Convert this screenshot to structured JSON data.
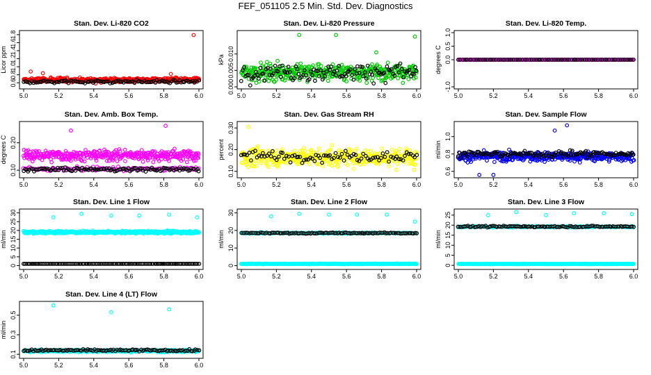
{
  "figure": {
    "title": "FEF_051105  2.5 Min. Std. Dev. Diagnostics"
  },
  "colors": {
    "black": "#000000",
    "red": "#ff0000",
    "green": "#00cc00",
    "magenta": "#ff00ff",
    "yellow": "#ffff00",
    "blue": "#0000ff",
    "cyan": "#00ffff"
  },
  "chart_data": [
    {
      "type": "scatter",
      "title": "Stan. Dev. Li-820 CO2",
      "ylabel": "Licor ppm",
      "xlim": [
        5.0,
        6.0
      ],
      "ylim": [
        0.5,
        1.85
      ],
      "xticks": [
        "5.0",
        "5.2",
        "5.4",
        "5.6",
        "5.8",
        "6.0"
      ],
      "yticks": [
        "0.6",
        "0.8",
        "1.0",
        "1.2",
        "1.4",
        "1.6",
        "1.8"
      ],
      "series": [
        {
          "color": "red",
          "n": 400,
          "base": 0.67,
          "spread": 0.1,
          "outliers": [
            [
              5.04,
              0.88
            ],
            [
              5.11,
              0.84
            ],
            [
              5.97,
              1.79
            ],
            [
              5.84,
              0.82
            ]
          ]
        },
        {
          "color": "black",
          "n": 110,
          "base": 0.63,
          "spread": 0.07,
          "outliers": []
        }
      ]
    },
    {
      "type": "scatter",
      "title": "Stan. Dev. Li-820 Pressure",
      "ylabel": "kPa",
      "xlim": [
        5.0,
        6.0
      ],
      "ylim": [
        0.0,
        0.0165
      ],
      "xticks": [
        "5.0",
        "5.2",
        "5.4",
        "5.6",
        "5.8",
        "6.0"
      ],
      "yticks": [
        "0.000",
        "0.005",
        "0.010"
      ],
      "series": [
        {
          "color": "green",
          "n": 420,
          "base": 0.0045,
          "spread": 0.0045,
          "outliers": [
            [
              5.33,
              0.0158
            ],
            [
              5.54,
              0.0158
            ],
            [
              5.99,
              0.0153
            ],
            [
              5.77,
              0.0105
            ]
          ]
        },
        {
          "color": "black",
          "n": 120,
          "base": 0.0045,
          "spread": 0.0045,
          "outliers": []
        }
      ]
    },
    {
      "type": "scatter",
      "title": "Stan. Dev. Li-820 Temp.",
      "ylabel": "degrees C",
      "xlim": [
        5.0,
        6.0
      ],
      "ylim": [
        -1.0,
        1.0
      ],
      "xticks": [
        "5.0",
        "5.2",
        "5.4",
        "5.6",
        "5.8",
        "6.0"
      ],
      "yticks": [
        "-1.0",
        "0.0",
        "0.5",
        "1.0"
      ],
      "series": [
        {
          "color": "magenta",
          "n": 200,
          "base": 0.0,
          "spread": 0.0,
          "outliers": []
        },
        {
          "color": "black",
          "n": 80,
          "base": 0.0,
          "spread": 0.0,
          "outliers": []
        }
      ]
    },
    {
      "type": "scatter",
      "title": "Stan. Dev. Amb. Box Temp.",
      "ylabel": "degrees C",
      "xlim": [
        5.0,
        6.0
      ],
      "ylim": [
        0.08,
        0.27
      ],
      "xticks": [
        "5.0",
        "5.2",
        "5.4",
        "5.6",
        "5.8",
        "6.0"
      ],
      "yticks": [
        "0.10",
        "0.20"
      ],
      "series": [
        {
          "color": "magenta",
          "n": 380,
          "base": 0.155,
          "spread": 0.035,
          "outliers": [
            [
              5.81,
              0.262
            ],
            [
              5.27,
              0.245
            ]
          ]
        },
        {
          "color": "magenta",
          "n": 120,
          "base": 0.105,
          "spread": 0.012,
          "outliers": []
        },
        {
          "color": "black",
          "n": 120,
          "base": 0.103,
          "spread": 0.012,
          "outliers": []
        }
      ]
    },
    {
      "type": "scatter",
      "title": "Stan. Dev. Gas Stream RH",
      "ylabel": "percent",
      "xlim": [
        5.0,
        6.0
      ],
      "ylim": [
        0.08,
        0.32
      ],
      "xticks": [
        "5.0",
        "5.2",
        "5.4",
        "5.6",
        "5.8",
        "6.0"
      ],
      "yticks": [
        "0.10",
        "0.20",
        "0.30"
      ],
      "series": [
        {
          "color": "yellow",
          "n": 450,
          "base": 0.165,
          "spread": 0.07,
          "outliers": [
            [
              5.04,
              0.305
            ]
          ]
        },
        {
          "color": "black",
          "n": 90,
          "base": 0.17,
          "spread": 0.045,
          "outliers": []
        }
      ]
    },
    {
      "type": "scatter",
      "title": "Stan. Dev. Sample Flow",
      "ylabel": "ml/min",
      "xlim": [
        5.0,
        6.0
      ],
      "ylim": [
        0.55,
        1.15
      ],
      "xticks": [
        "5.0",
        "5.2",
        "5.4",
        "5.6",
        "5.8",
        "6.0"
      ],
      "yticks": [
        "0.6",
        "0.8",
        "1.0"
      ],
      "series": [
        {
          "color": "blue",
          "n": 460,
          "base": 0.77,
          "spread": 0.09,
          "outliers": [
            [
              5.12,
              0.56
            ],
            [
              5.2,
              0.56
            ],
            [
              5.62,
              1.13
            ],
            [
              5.55,
              1.07
            ]
          ]
        },
        {
          "color": "black",
          "n": 130,
          "base": 0.8,
          "spread": 0.06,
          "outliers": []
        }
      ]
    },
    {
      "type": "scatter",
      "title": "Stan. Dev. Line 1 Flow",
      "ylabel": "ml/min",
      "xlim": [
        5.0,
        6.0
      ],
      "ylim": [
        -1,
        31
      ],
      "xticks": [
        "5.0",
        "5.2",
        "5.4",
        "5.6",
        "5.8",
        "6.0"
      ],
      "yticks": [
        "0",
        "5",
        "10",
        "15",
        "20",
        "25",
        "30"
      ],
      "series": [
        {
          "color": "cyan",
          "n": 480,
          "base": 19,
          "spread": 1.2,
          "outliers": [
            [
              5.17,
              27.5
            ],
            [
              5.33,
              29.5
            ],
            [
              5.5,
              28.5
            ],
            [
              5.66,
              28.5
            ],
            [
              5.83,
              29
            ],
            [
              5.99,
              27.5
            ]
          ]
        },
        {
          "color": "black",
          "n": 120,
          "base": 1,
          "spread": 0.0,
          "outliers": []
        }
      ]
    },
    {
      "type": "scatter",
      "title": "Stan. Dev. Line 2 Flow",
      "ylabel": "ml/min",
      "xlim": [
        5.0,
        6.0
      ],
      "ylim": [
        -1,
        31
      ],
      "xticks": [
        "5.0",
        "5.2",
        "5.4",
        "5.6",
        "5.8",
        "6.0"
      ],
      "yticks": [
        "0",
        "10",
        "20",
        "30"
      ],
      "series": [
        {
          "color": "cyan",
          "n": 420,
          "base": 1,
          "spread": 0.3,
          "outliers": []
        },
        {
          "color": "cyan",
          "n": 160,
          "base": 18.5,
          "spread": 0.6,
          "outliers": [
            [
              5.17,
              28
            ],
            [
              5.33,
              29.5
            ],
            [
              5.5,
              29
            ],
            [
              5.66,
              29
            ],
            [
              5.83,
              29
            ],
            [
              5.99,
              25
            ]
          ]
        },
        {
          "color": "black",
          "n": 110,
          "base": 18.5,
          "spread": 0.6,
          "outliers": []
        }
      ]
    },
    {
      "type": "scatter",
      "title": "Stan. Dev. Line 3 Flow",
      "ylabel": "ml/min",
      "xlim": [
        5.0,
        6.0
      ],
      "ylim": [
        -1,
        27
      ],
      "xticks": [
        "5.0",
        "5.2",
        "5.4",
        "5.6",
        "5.8",
        "6.0"
      ],
      "yticks": [
        "0",
        "5",
        "10",
        "15",
        "20",
        "25"
      ],
      "series": [
        {
          "color": "cyan",
          "n": 420,
          "base": 0.7,
          "spread": 0.2,
          "outliers": []
        },
        {
          "color": "cyan",
          "n": 170,
          "base": 19.2,
          "spread": 0.6,
          "outliers": [
            [
              5.17,
              25
            ],
            [
              5.33,
              26.5
            ],
            [
              5.5,
              25
            ],
            [
              5.66,
              26
            ],
            [
              5.83,
              26
            ],
            [
              5.99,
              25.5
            ]
          ]
        },
        {
          "color": "black",
          "n": 110,
          "base": 19.3,
          "spread": 0.6,
          "outliers": []
        }
      ]
    },
    {
      "type": "scatter",
      "title": "Stan. Dev. Line 4 (LT) Flow",
      "ylabel": "ml/min",
      "xlim": [
        5.0,
        6.0
      ],
      "ylim": [
        0.08,
        0.62
      ],
      "xticks": [
        "5.0",
        "5.2",
        "5.4",
        "5.6",
        "5.8",
        "6.0"
      ],
      "yticks": [
        "0.1",
        "0.3",
        "0.5"
      ],
      "series": [
        {
          "color": "cyan",
          "n": 440,
          "base": 0.135,
          "spread": 0.02,
          "outliers": [
            [
              5.17,
              0.6
            ],
            [
              5.5,
              0.53
            ],
            [
              5.83,
              0.56
            ]
          ]
        },
        {
          "color": "black",
          "n": 110,
          "base": 0.14,
          "spread": 0.02,
          "outliers": []
        }
      ]
    }
  ]
}
